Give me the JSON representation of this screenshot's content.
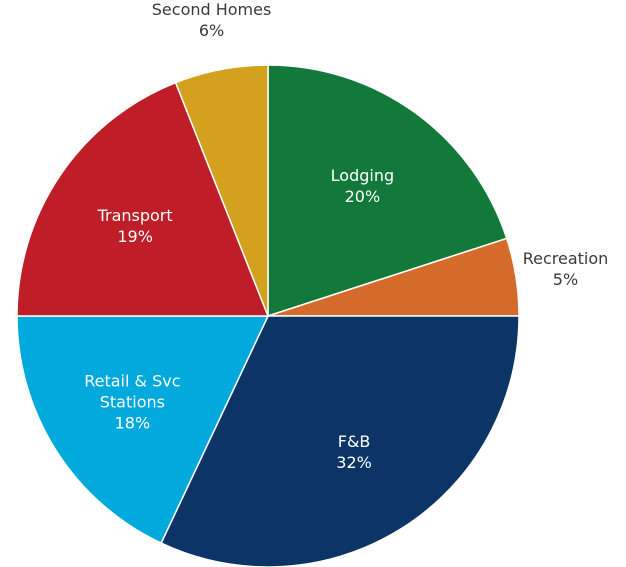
{
  "chart_data": {
    "type": "pie",
    "categories": [
      "Lodging",
      "Recreation",
      "F&B",
      "Retail & Svc Stations",
      "Transport",
      "Second Homes"
    ],
    "values": [
      20,
      5,
      32,
      18,
      19,
      6
    ],
    "value_labels": [
      "20%",
      "5%",
      "32%",
      "18%",
      "19%",
      "6%"
    ],
    "colors": [
      "#13793b",
      "#d46b2b",
      "#0c3466",
      "#01a9dd",
      "#bf1d27",
      "#d4a11f"
    ]
  }
}
